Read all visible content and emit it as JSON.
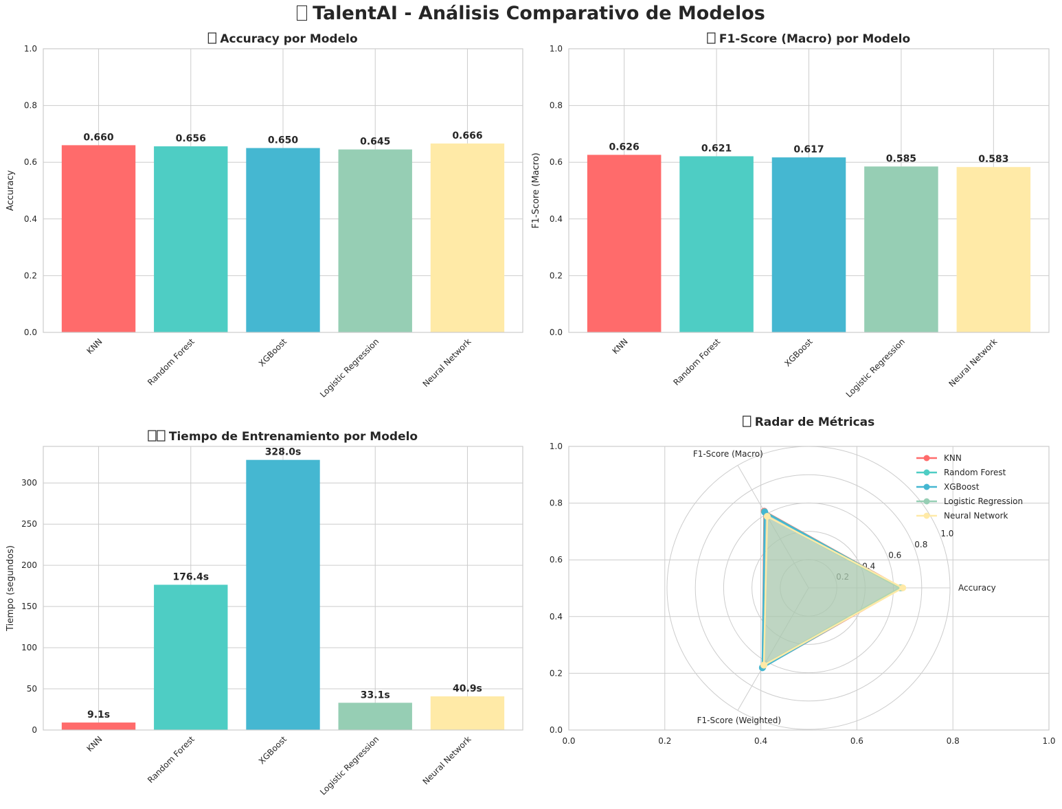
{
  "figure": {
    "title": "TalentAI - Análisis Comparativo de Modelos",
    "title_icon": "missing-glyph-box"
  },
  "colors": {
    "KNN": "#ff6b6b",
    "Random Forest": "#4ecdc4",
    "XGBoost": "#45b7d1",
    "Logistic Regression": "#96ceb4",
    "Neural Network": "#ffeaa7",
    "grid": "#cccccc",
    "axes_edge": "#cccccc",
    "text": "#262626"
  },
  "chart_data": [
    {
      "id": "accuracy",
      "type": "bar",
      "title": "Accuracy por Modelo",
      "title_icon": "missing-glyph-box",
      "title_icon_count": 1,
      "categories": [
        "KNN",
        "Random Forest",
        "XGBoost",
        "Logistic Regression",
        "Neural Network"
      ],
      "values": [
        0.66,
        0.656,
        0.65,
        0.645,
        0.666
      ],
      "value_labels": [
        "0.660",
        "0.656",
        "0.650",
        "0.645",
        "0.666"
      ],
      "xlabel": "",
      "ylabel": "Accuracy",
      "ylim": [
        0,
        1.0
      ],
      "yticks": [
        0.0,
        0.2,
        0.4,
        0.6,
        0.8,
        1.0
      ],
      "ytick_labels": [
        "0.0",
        "0.2",
        "0.4",
        "0.6",
        "0.8",
        "1.0"
      ],
      "grid": true
    },
    {
      "id": "f1macro",
      "type": "bar",
      "title": "F1-Score (Macro) por Modelo",
      "title_icon": "missing-glyph-box",
      "title_icon_count": 1,
      "categories": [
        "KNN",
        "Random Forest",
        "XGBoost",
        "Logistic Regression",
        "Neural Network"
      ],
      "values": [
        0.626,
        0.621,
        0.617,
        0.585,
        0.583
      ],
      "value_labels": [
        "0.626",
        "0.621",
        "0.617",
        "0.585",
        "0.583"
      ],
      "xlabel": "",
      "ylabel": "F1-Score (Macro)",
      "ylim": [
        0,
        1.0
      ],
      "yticks": [
        0.0,
        0.2,
        0.4,
        0.6,
        0.8,
        1.0
      ],
      "ytick_labels": [
        "0.0",
        "0.2",
        "0.4",
        "0.6",
        "0.8",
        "1.0"
      ],
      "grid": true
    },
    {
      "id": "time",
      "type": "bar",
      "title": "Tiempo de Entrenamiento por Modelo",
      "title_icon": "missing-glyph-box",
      "title_icon_count": 2,
      "categories": [
        "KNN",
        "Random Forest",
        "XGBoost",
        "Logistic Regression",
        "Neural Network"
      ],
      "values": [
        9.1,
        176.4,
        328.0,
        33.1,
        40.9
      ],
      "value_labels": [
        "9.1s",
        "176.4s",
        "328.0s",
        "33.1s",
        "40.9s"
      ],
      "xlabel": "",
      "ylabel": "Tiempo (segundos)",
      "ylim": [
        0,
        344.4
      ],
      "yticks": [
        0,
        50,
        100,
        150,
        200,
        250,
        300
      ],
      "ytick_labels": [
        "0",
        "50",
        "100",
        "150",
        "200",
        "250",
        "300"
      ],
      "grid": true
    },
    {
      "id": "radar",
      "type": "radar",
      "title": "Radar de Métricas",
      "title_icon": "missing-glyph-box",
      "title_icon_count": 1,
      "axes": [
        "Accuracy",
        "F1-Score (Macro)",
        "F1-Score (Weighted)"
      ],
      "radial_ticks": [
        0.2,
        0.4,
        0.6,
        0.8,
        1.0
      ],
      "radial_tick_labels": [
        "0.2",
        "0.4",
        "0.6",
        "0.8",
        "1.0"
      ],
      "radial_max": 1.0,
      "series": [
        {
          "name": "KNN",
          "values": [
            0.66,
            0.626,
            0.65
          ]
        },
        {
          "name": "Random Forest",
          "values": [
            0.656,
            0.621,
            0.645
          ]
        },
        {
          "name": "XGBoost",
          "values": [
            0.65,
            0.617,
            0.652
          ]
        },
        {
          "name": "Logistic Regression",
          "values": [
            0.645,
            0.585,
            0.626
          ]
        },
        {
          "name": "Neural Network",
          "values": [
            0.666,
            0.583,
            0.631
          ]
        }
      ],
      "background_axes": {
        "xlim": [
          0,
          1.0
        ],
        "ylim": [
          0,
          1.0
        ],
        "ticks": [
          0.0,
          0.2,
          0.4,
          0.6,
          0.8,
          1.0
        ],
        "tick_labels": [
          "0.0",
          "0.2",
          "0.4",
          "0.6",
          "0.8",
          "1.0"
        ]
      },
      "legend_position": "top-right",
      "grid": true
    }
  ]
}
